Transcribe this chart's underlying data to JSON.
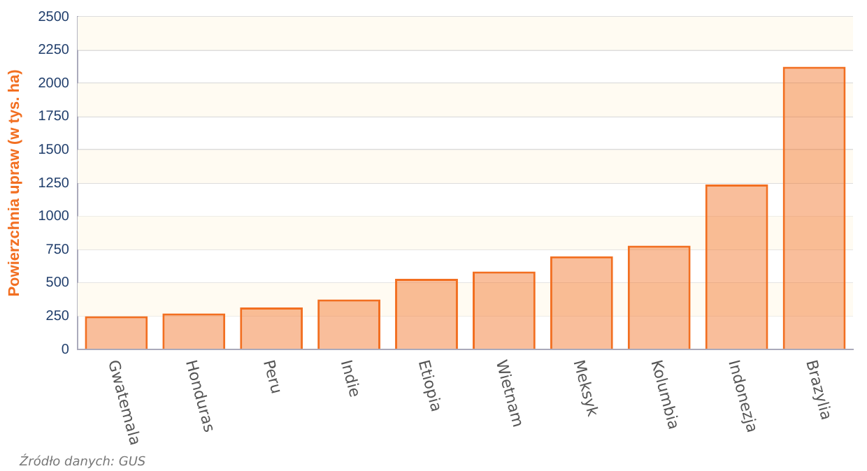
{
  "chart_data": {
    "type": "bar",
    "ylabel": "Powierzchnia upraw (w tys. ha)",
    "categories": [
      "Gwatemala",
      "Honduras",
      "Peru",
      "Indie",
      "Etiopia",
      "Wietnam",
      "Meksyk",
      "Kolumbia",
      "Indonezja",
      "Brazylia"
    ],
    "values": [
      250,
      270,
      315,
      375,
      530,
      585,
      700,
      780,
      1240,
      2125
    ],
    "color": "#f26f21",
    "ylim": [
      0,
      2500
    ],
    "yticks": [
      0,
      250,
      500,
      750,
      1000,
      1250,
      1500,
      1750,
      2000,
      2250,
      2500
    ],
    "grid": "y",
    "legend": false,
    "annotations": [
      "Źródło danych: GUS"
    ]
  }
}
